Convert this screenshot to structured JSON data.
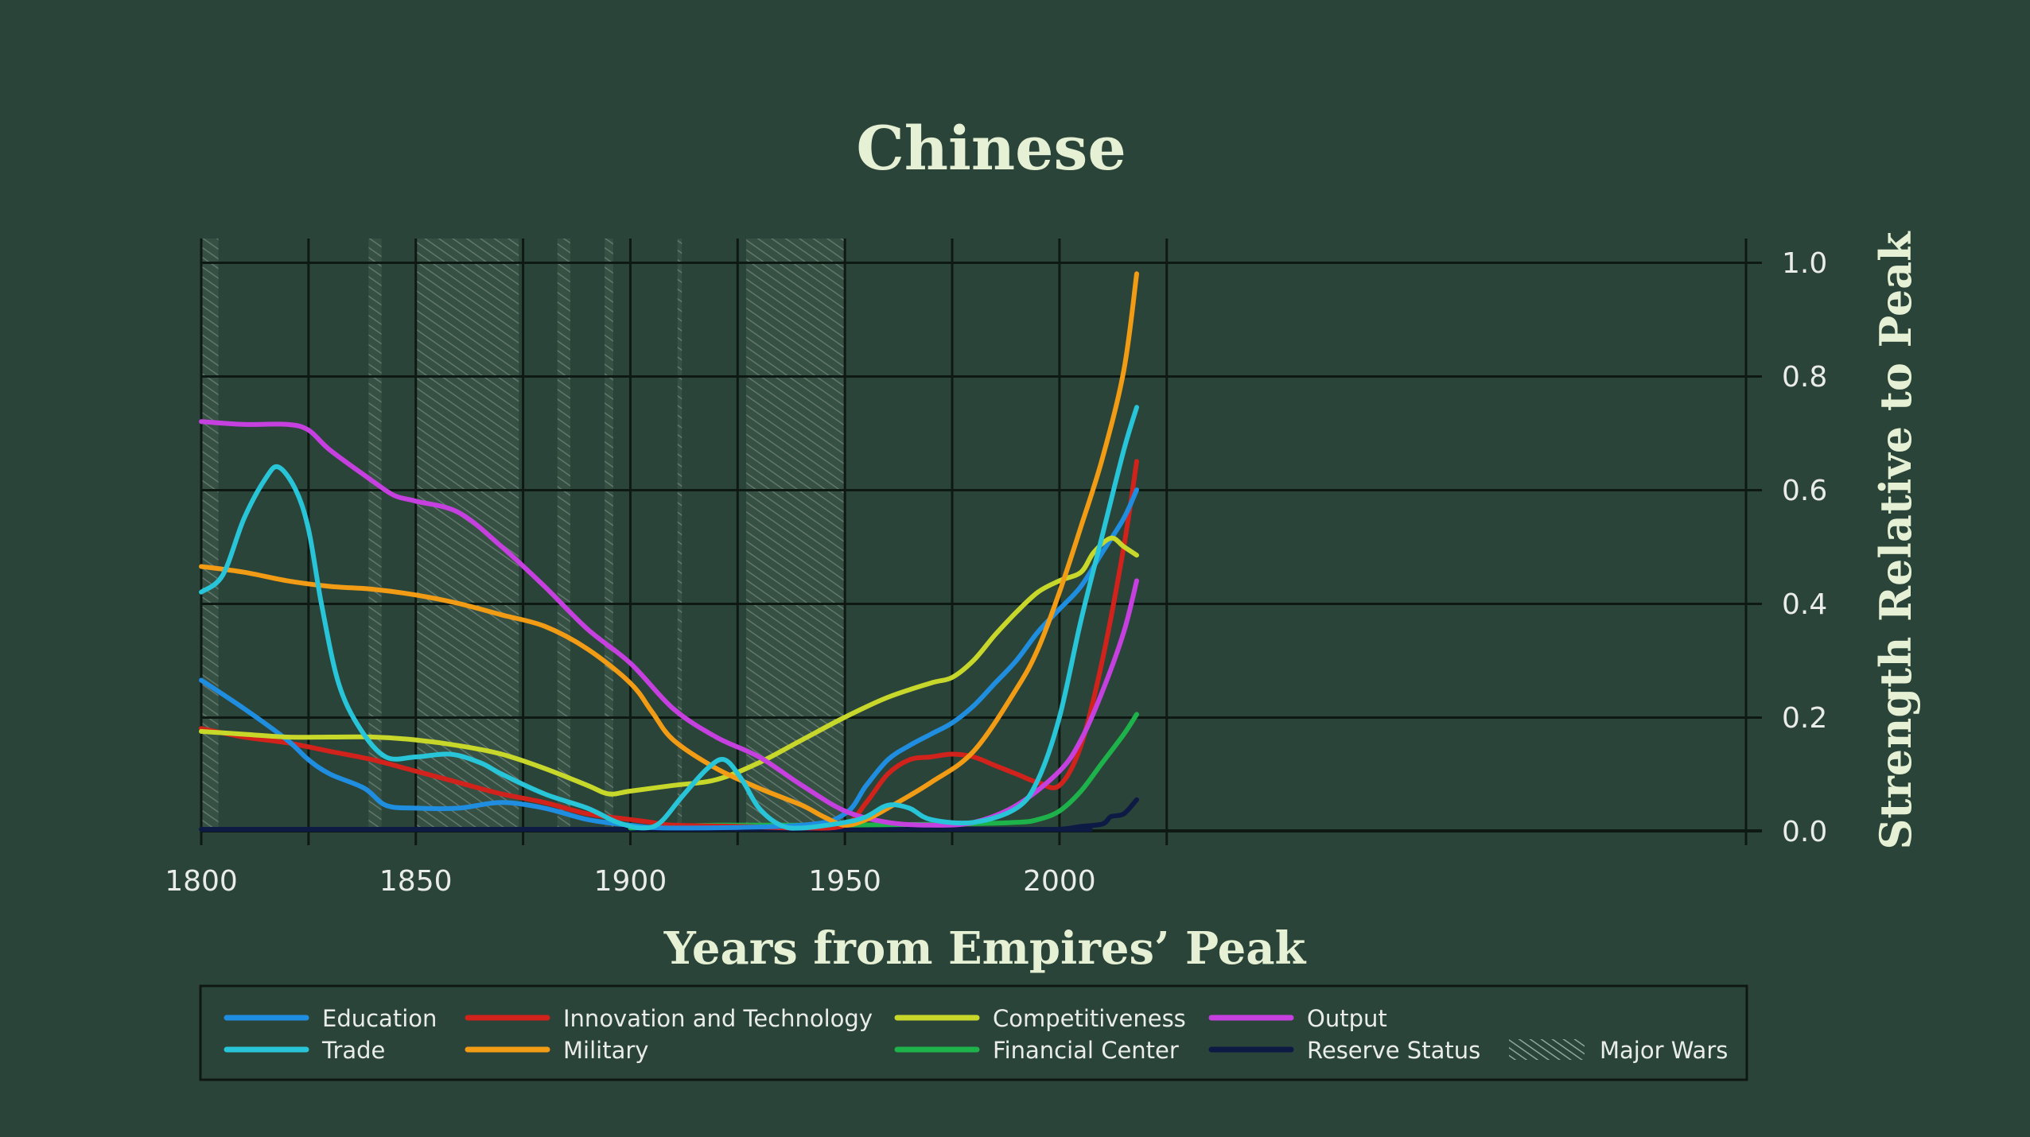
{
  "chart_data": {
    "type": "line",
    "title": "Chinese",
    "xlabel": "Years from Empires’ Peak",
    "ylabel": "Strength Relative to Peak",
    "xlim": [
      1800,
      2025
    ],
    "ylim": [
      0,
      1.0
    ],
    "x_ticks": [
      1800,
      1850,
      1900,
      1950,
      2000
    ],
    "x_tick_labels": [
      "1800",
      "1850",
      "1900",
      "1950",
      "2000"
    ],
    "y_ticks": [
      0,
      0.2,
      0.4,
      0.6,
      0.8,
      1.0
    ],
    "y_tick_labels": [
      "0.0",
      "0.2",
      "0.4",
      "0.6",
      "0.8",
      "1.0"
    ],
    "y_axis_side": "right",
    "grid": true,
    "legend_position": "bottom",
    "background_color": "#2b4439",
    "major_wars": [
      [
        1800,
        1804
      ],
      [
        1839,
        1842
      ],
      [
        1850,
        1874
      ],
      [
        1883,
        1886
      ],
      [
        1894,
        1896
      ],
      [
        1911,
        1912
      ],
      [
        1927,
        1950
      ]
    ],
    "legend": [
      {
        "label": "Education",
        "color": "#1f8ee0"
      },
      {
        "label": "Innovation and Technology",
        "color": "#d2221c"
      },
      {
        "label": "Competitiveness",
        "color": "#c8d82a"
      },
      {
        "label": "Output",
        "color": "#c640e0"
      },
      {
        "label": "Trade",
        "color": "#28c4d8"
      },
      {
        "label": "Military",
        "color": "#f29b14"
      },
      {
        "label": "Financial Center",
        "color": "#1db34a"
      },
      {
        "label": "Reserve Status",
        "color": "#0c1a44"
      },
      {
        "label": "Major Wars",
        "color": "#8fa69a",
        "type": "hatch"
      }
    ],
    "series": [
      {
        "name": "Reserve Status",
        "color": "#0c1a44",
        "x": [
          1800,
          1990,
          2000,
          2005,
          2010,
          2012,
          2015,
          2018
        ],
        "y": [
          0.0,
          0.0,
          0.002,
          0.008,
          0.012,
          0.025,
          0.03,
          0.055
        ]
      },
      {
        "name": "Financial Center",
        "color": "#1db34a",
        "x": [
          1900,
          1920,
          1950,
          1975,
          1990,
          1995,
          2000,
          2005,
          2010,
          2015,
          2018
        ],
        "y": [
          0.005,
          0.01,
          0.01,
          0.012,
          0.015,
          0.02,
          0.035,
          0.07,
          0.12,
          0.17,
          0.205
        ]
      },
      {
        "name": "Innovation and Technology",
        "color": "#d2221c",
        "x": [
          1800,
          1810,
          1820,
          1830,
          1840,
          1850,
          1860,
          1870,
          1880,
          1890,
          1900,
          1905,
          1910,
          1925,
          1940,
          1950,
          1955,
          1960,
          1965,
          1970,
          1975,
          1980,
          1985,
          1990,
          1995,
          2000,
          2005,
          2010,
          2015,
          2018
        ],
        "y": [
          0.18,
          0.165,
          0.155,
          0.14,
          0.125,
          0.105,
          0.085,
          0.065,
          0.05,
          0.03,
          0.02,
          0.015,
          0.01,
          0.008,
          0.005,
          0.01,
          0.05,
          0.1,
          0.125,
          0.13,
          0.135,
          0.13,
          0.115,
          0.1,
          0.085,
          0.08,
          0.15,
          0.3,
          0.5,
          0.65
        ]
      },
      {
        "name": "Education",
        "color": "#1f8ee0",
        "x": [
          1800,
          1810,
          1820,
          1825,
          1830,
          1838,
          1843,
          1850,
          1860,
          1870,
          1880,
          1890,
          1900,
          1910,
          1940,
          1950,
          1955,
          1960,
          1965,
          1970,
          1975,
          1980,
          1985,
          1990,
          1995,
          2000,
          2005,
          2010,
          2015,
          2018
        ],
        "y": [
          0.265,
          0.215,
          0.16,
          0.125,
          0.1,
          0.075,
          0.045,
          0.04,
          0.04,
          0.05,
          0.04,
          0.02,
          0.01,
          0.005,
          0.01,
          0.03,
          0.08,
          0.125,
          0.15,
          0.17,
          0.19,
          0.22,
          0.26,
          0.3,
          0.35,
          0.39,
          0.43,
          0.49,
          0.55,
          0.6
        ]
      },
      {
        "name": "Competitiveness",
        "color": "#c8d82a",
        "x": [
          1800,
          1810,
          1820,
          1830,
          1840,
          1850,
          1860,
          1870,
          1880,
          1890,
          1895,
          1900,
          1910,
          1920,
          1930,
          1940,
          1950,
          1960,
          1970,
          1975,
          1980,
          1985,
          1990,
          1995,
          2000,
          2005,
          2008,
          2012,
          2015,
          2018
        ],
        "y": [
          0.175,
          0.17,
          0.165,
          0.165,
          0.165,
          0.16,
          0.15,
          0.135,
          0.11,
          0.08,
          0.065,
          0.07,
          0.08,
          0.09,
          0.12,
          0.16,
          0.2,
          0.235,
          0.26,
          0.27,
          0.3,
          0.345,
          0.385,
          0.42,
          0.44,
          0.455,
          0.49,
          0.515,
          0.5,
          0.485
        ]
      },
      {
        "name": "Output",
        "color": "#c640e0",
        "x": [
          1800,
          1810,
          1820,
          1825,
          1830,
          1840,
          1845,
          1850,
          1860,
          1870,
          1880,
          1890,
          1900,
          1910,
          1920,
          1930,
          1940,
          1950,
          1960,
          1970,
          1980,
          1990,
          2000,
          2005,
          2010,
          2015,
          2018
        ],
        "y": [
          0.72,
          0.715,
          0.715,
          0.705,
          0.67,
          0.615,
          0.59,
          0.58,
          0.56,
          0.5,
          0.43,
          0.355,
          0.295,
          0.215,
          0.165,
          0.13,
          0.08,
          0.035,
          0.015,
          0.01,
          0.015,
          0.045,
          0.105,
          0.16,
          0.245,
          0.35,
          0.44
        ]
      },
      {
        "name": "Military",
        "color": "#f29b14",
        "x": [
          1800,
          1810,
          1820,
          1830,
          1840,
          1850,
          1860,
          1870,
          1880,
          1890,
          1900,
          1905,
          1910,
          1920,
          1930,
          1940,
          1945,
          1950,
          1955,
          1960,
          1970,
          1980,
          1990,
          1995,
          2000,
          2005,
          2010,
          2015,
          2018
        ],
        "y": [
          0.465,
          0.455,
          0.44,
          0.43,
          0.425,
          0.415,
          0.4,
          0.38,
          0.36,
          0.32,
          0.26,
          0.21,
          0.16,
          0.11,
          0.075,
          0.045,
          0.025,
          0.01,
          0.02,
          0.04,
          0.085,
          0.14,
          0.25,
          0.32,
          0.42,
          0.535,
          0.655,
          0.81,
          0.98
        ]
      },
      {
        "name": "Trade",
        "color": "#28c4d8",
        "x": [
          1800,
          1805,
          1810,
          1815,
          1818,
          1822,
          1825,
          1828,
          1832,
          1837,
          1843,
          1850,
          1858,
          1865,
          1870,
          1880,
          1890,
          1897,
          1903,
          1907,
          1912,
          1918,
          1922,
          1926,
          1930,
          1935,
          1940,
          1950,
          1955,
          1960,
          1965,
          1970,
          1980,
          1990,
          1995,
          2000,
          2005,
          2010,
          2015,
          2018
        ],
        "y": [
          0.42,
          0.45,
          0.55,
          0.62,
          0.64,
          0.6,
          0.53,
          0.4,
          0.26,
          0.18,
          0.13,
          0.13,
          0.135,
          0.12,
          0.1,
          0.065,
          0.04,
          0.015,
          0.005,
          0.015,
          0.06,
          0.11,
          0.125,
          0.09,
          0.04,
          0.01,
          0.005,
          0.015,
          0.025,
          0.045,
          0.04,
          0.02,
          0.015,
          0.04,
          0.09,
          0.2,
          0.37,
          0.52,
          0.67,
          0.745
        ]
      }
    ]
  }
}
